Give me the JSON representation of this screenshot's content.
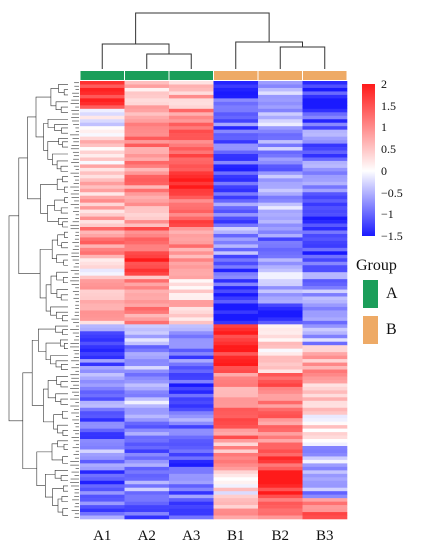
{
  "chart_data": {
    "type": "heatmap",
    "title": "",
    "columns": [
      "A1",
      "A2",
      "A3",
      "B1",
      "B2",
      "B3"
    ],
    "column_groups": [
      "A",
      "A",
      "A",
      "B",
      "B",
      "B"
    ],
    "color_scale": {
      "min": -1.5,
      "max": 2,
      "low_color": "#1a1aff",
      "mid_color": "#ffffff",
      "high_color": "#ff1a1a",
      "ticks": [
        "2",
        "1.5",
        "1",
        "0.5",
        "0",
        "−0.5",
        "−1",
        "−1.5"
      ],
      "tick_values": [
        2,
        1.5,
        1,
        0.5,
        0,
        -0.5,
        -1,
        -1.5
      ]
    },
    "group_legend": {
      "title": "Group",
      "items": [
        {
          "label": "A",
          "color": "#1b9e5a"
        },
        {
          "label": "B",
          "color": "#eeaa66"
        }
      ]
    },
    "row_blocks": [
      {
        "rows": 8,
        "values": [
          1.8,
          0.5,
          0.6,
          -1.2,
          -0.6,
          -1.4
        ]
      },
      {
        "rows": 6,
        "values": [
          -0.2,
          0.9,
          1.1,
          -1.0,
          -0.5,
          -1.1
        ]
      },
      {
        "rows": 10,
        "values": [
          0.4,
          1.1,
          1.4,
          -1.0,
          -0.6,
          -0.9
        ]
      },
      {
        "rows": 10,
        "values": [
          0.6,
          1.0,
          1.7,
          -1.3,
          -0.7,
          -0.8
        ]
      },
      {
        "rows": 8,
        "values": [
          0.6,
          0.8,
          1.4,
          -0.9,
          -0.5,
          -1.2
        ]
      },
      {
        "rows": 8,
        "values": [
          1.0,
          1.2,
          1.0,
          -0.7,
          -0.9,
          -1.3
        ]
      },
      {
        "rows": 6,
        "values": [
          0.3,
          1.8,
          0.8,
          -1.0,
          -0.5,
          -0.8
        ]
      },
      {
        "rows": 8,
        "values": [
          0.8,
          0.9,
          0.5,
          -1.2,
          -0.4,
          -0.7
        ]
      },
      {
        "rows": 6,
        "values": [
          0.7,
          1.0,
          0.6,
          -1.5,
          -1.3,
          -0.6
        ]
      },
      {
        "rows": 6,
        "values": [
          -0.9,
          -0.6,
          -0.8,
          1.9,
          0.3,
          -0.6
        ]
      },
      {
        "rows": 8,
        "values": [
          -1.0,
          -0.6,
          -0.9,
          1.8,
          0.4,
          0.8
        ]
      },
      {
        "rows": 10,
        "values": [
          -0.8,
          -0.5,
          -1.1,
          0.9,
          1.2,
          0.6
        ]
      },
      {
        "rows": 10,
        "values": [
          -1.0,
          -0.8,
          -0.9,
          1.2,
          1.1,
          0.3
        ]
      },
      {
        "rows": 8,
        "values": [
          -0.7,
          -0.9,
          -1.2,
          0.8,
          1.6,
          -0.5
        ]
      },
      {
        "rows": 8,
        "values": [
          -1.1,
          -0.7,
          -1.0,
          0.2,
          1.9,
          -0.6
        ]
      },
      {
        "rows": 6,
        "values": [
          -0.9,
          -1.0,
          -1.1,
          0.6,
          1.3,
          1.2
        ]
      }
    ]
  }
}
